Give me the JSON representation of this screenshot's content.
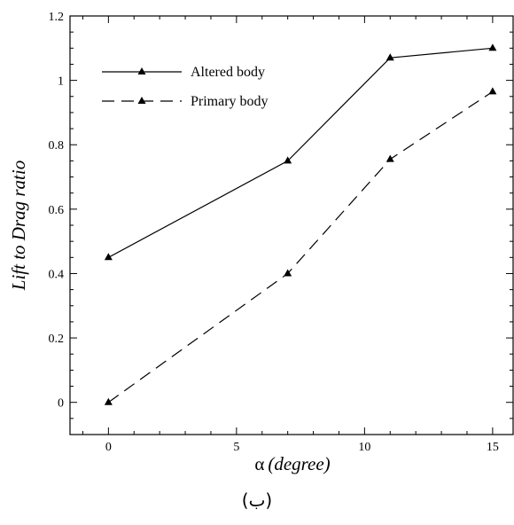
{
  "chart_data": {
    "type": "line",
    "xlabel_symbol": "α",
    "xlabel": "(degree)",
    "ylabel": "Lift to Drag ratio",
    "xlim": [
      -1.5,
      15.8
    ],
    "ylim": [
      -0.1,
      1.2
    ],
    "xticks": [
      0,
      5,
      10,
      15
    ],
    "yticks": [
      0,
      0.2,
      0.4,
      0.6,
      0.8,
      1,
      1.2
    ],
    "ytick_labels": [
      "0",
      "0.2",
      "0.4",
      "0.6",
      "0.8",
      "1",
      "1.2"
    ],
    "x_minor_step": 1,
    "y_minor_step": 0.05,
    "grid": false,
    "legend_position": "top-left",
    "series": [
      {
        "name": "Altered body",
        "style": "solid",
        "marker": "triangle",
        "x": [
          0,
          7,
          11,
          15
        ],
        "y": [
          0.45,
          0.75,
          1.07,
          1.1
        ]
      },
      {
        "name": "Primary body",
        "style": "dashed",
        "marker": "triangle",
        "x": [
          0,
          7,
          11,
          15
        ],
        "y": [
          0.0,
          0.4,
          0.755,
          0.965
        ]
      }
    ]
  },
  "caption": "(ب)"
}
